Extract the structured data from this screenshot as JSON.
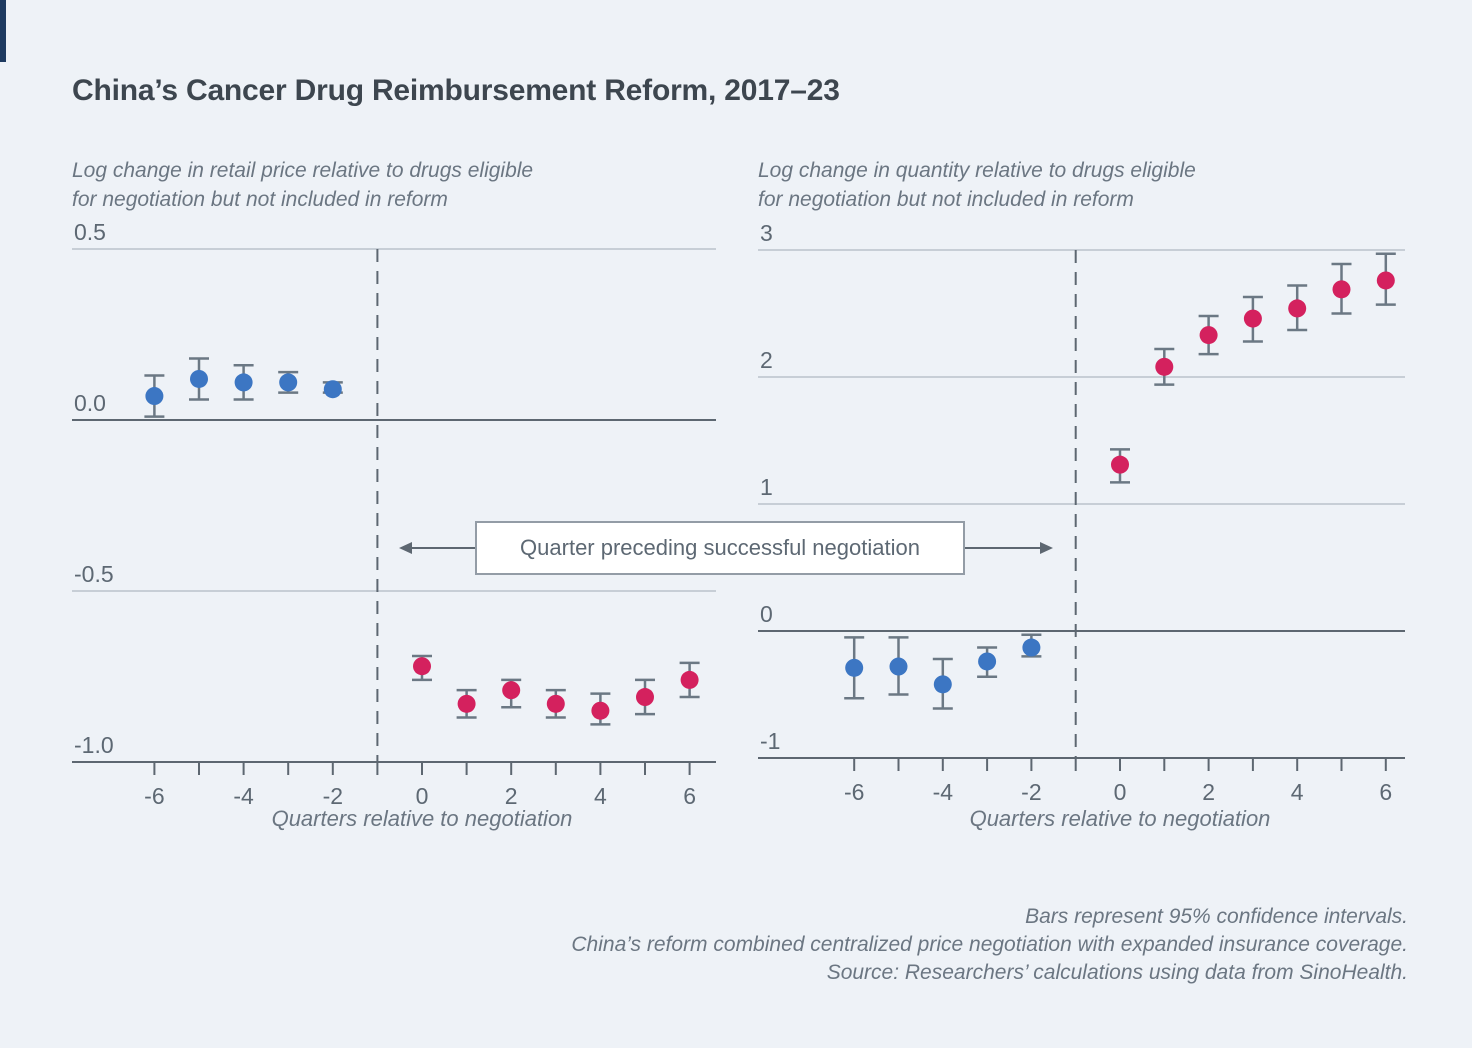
{
  "page": {
    "title": "China’s Cancer Drug Reimbursement Reform, 2017–23"
  },
  "annotation": {
    "label": "Quarter preceding successful negotiation"
  },
  "notes": {
    "line1": "Bars represent 95% confidence intervals.",
    "line2": "China’s reform combined centralized price negotiation with expanded insurance coverage.",
    "line3": "Source: Researchers’ calculations using data from SinoHealth."
  },
  "colors": {
    "pre_point": "#3c76c3",
    "post_point": "#d4215e",
    "error_bar": "#6b7884",
    "accent_bar": "#1e3a60"
  },
  "chart_data": [
    {
      "type": "scatter",
      "panel": "retail_price",
      "subtitle": "Log change in retail price relative to drugs eligible\nfor negotiation but not included in reform",
      "xlabel": "Quarters relative to negotiation",
      "xlim": [
        -7,
        6.7
      ],
      "ylim": [
        -1.0,
        0.5
      ],
      "x_tick_values": [
        -6,
        -5,
        -4,
        -3,
        -2,
        -1,
        0,
        1,
        2,
        3,
        4,
        5,
        6
      ],
      "x_tick_label_values": [
        -6,
        -4,
        -2,
        0,
        2,
        4,
        6
      ],
      "y_gridlines": [
        0.5,
        0.0,
        -0.5,
        -1.0
      ],
      "y_tick_labels": [
        "0.5",
        "0.0",
        "-0.5",
        "-1.0"
      ],
      "zero_line": 0.0,
      "event_line_x": -1,
      "grid": "on",
      "legend": "none",
      "series": [
        {
          "name": "pre-negotiation",
          "color_key": "pre_point",
          "points": [
            {
              "x": -6,
              "y": 0.07,
              "lo": 0.01,
              "hi": 0.13
            },
            {
              "x": -5,
              "y": 0.12,
              "lo": 0.06,
              "hi": 0.18
            },
            {
              "x": -4,
              "y": 0.11,
              "lo": 0.06,
              "hi": 0.16
            },
            {
              "x": -3,
              "y": 0.11,
              "lo": 0.08,
              "hi": 0.14
            },
            {
              "x": -2,
              "y": 0.09,
              "lo": 0.08,
              "hi": 0.11
            }
          ]
        },
        {
          "name": "post-negotiation",
          "color_key": "post_point",
          "points": [
            {
              "x": 0,
              "y": -0.72,
              "lo": -0.76,
              "hi": -0.69
            },
            {
              "x": 1,
              "y": -0.83,
              "lo": -0.87,
              "hi": -0.79
            },
            {
              "x": 2,
              "y": -0.79,
              "lo": -0.84,
              "hi": -0.76
            },
            {
              "x": 3,
              "y": -0.83,
              "lo": -0.87,
              "hi": -0.79
            },
            {
              "x": 4,
              "y": -0.85,
              "lo": -0.89,
              "hi": -0.8
            },
            {
              "x": 5,
              "y": -0.81,
              "lo": -0.86,
              "hi": -0.76
            },
            {
              "x": 6,
              "y": -0.76,
              "lo": -0.81,
              "hi": -0.71
            }
          ]
        }
      ]
    },
    {
      "type": "scatter",
      "panel": "quantity",
      "subtitle": "Log change in quantity relative to drugs eligible\nfor negotiation but not included in reform",
      "xlabel": "Quarters relative to negotiation",
      "xlim": [
        -7,
        6.7
      ],
      "ylim": [
        -1,
        3
      ],
      "x_tick_values": [
        -6,
        -5,
        -4,
        -3,
        -2,
        -1,
        0,
        1,
        2,
        3,
        4,
        5,
        6
      ],
      "x_tick_label_values": [
        -6,
        -4,
        -2,
        0,
        2,
        4,
        6
      ],
      "y_gridlines": [
        3,
        2,
        1,
        0,
        -1
      ],
      "y_tick_labels": [
        "3",
        "2",
        "1",
        "0",
        "-1"
      ],
      "zero_line": 0,
      "event_line_x": -1,
      "grid": "on",
      "legend": "none",
      "series": [
        {
          "name": "pre-negotiation",
          "color_key": "pre_point",
          "points": [
            {
              "x": -6,
              "y": -0.29,
              "lo": -0.53,
              "hi": -0.05
            },
            {
              "x": -5,
              "y": -0.28,
              "lo": -0.5,
              "hi": -0.05
            },
            {
              "x": -4,
              "y": -0.42,
              "lo": -0.61,
              "hi": -0.22
            },
            {
              "x": -3,
              "y": -0.24,
              "lo": -0.36,
              "hi": -0.13
            },
            {
              "x": -2,
              "y": -0.13,
              "lo": -0.2,
              "hi": -0.03
            }
          ]
        },
        {
          "name": "post-negotiation",
          "color_key": "post_point",
          "points": [
            {
              "x": 0,
              "y": 1.31,
              "lo": 1.17,
              "hi": 1.43
            },
            {
              "x": 1,
              "y": 2.08,
              "lo": 1.94,
              "hi": 2.22
            },
            {
              "x": 2,
              "y": 2.33,
              "lo": 2.18,
              "hi": 2.48
            },
            {
              "x": 3,
              "y": 2.46,
              "lo": 2.28,
              "hi": 2.63
            },
            {
              "x": 4,
              "y": 2.54,
              "lo": 2.37,
              "hi": 2.72
            },
            {
              "x": 5,
              "y": 2.69,
              "lo": 2.5,
              "hi": 2.89
            },
            {
              "x": 6,
              "y": 2.76,
              "lo": 2.57,
              "hi": 2.97
            }
          ]
        }
      ]
    }
  ]
}
